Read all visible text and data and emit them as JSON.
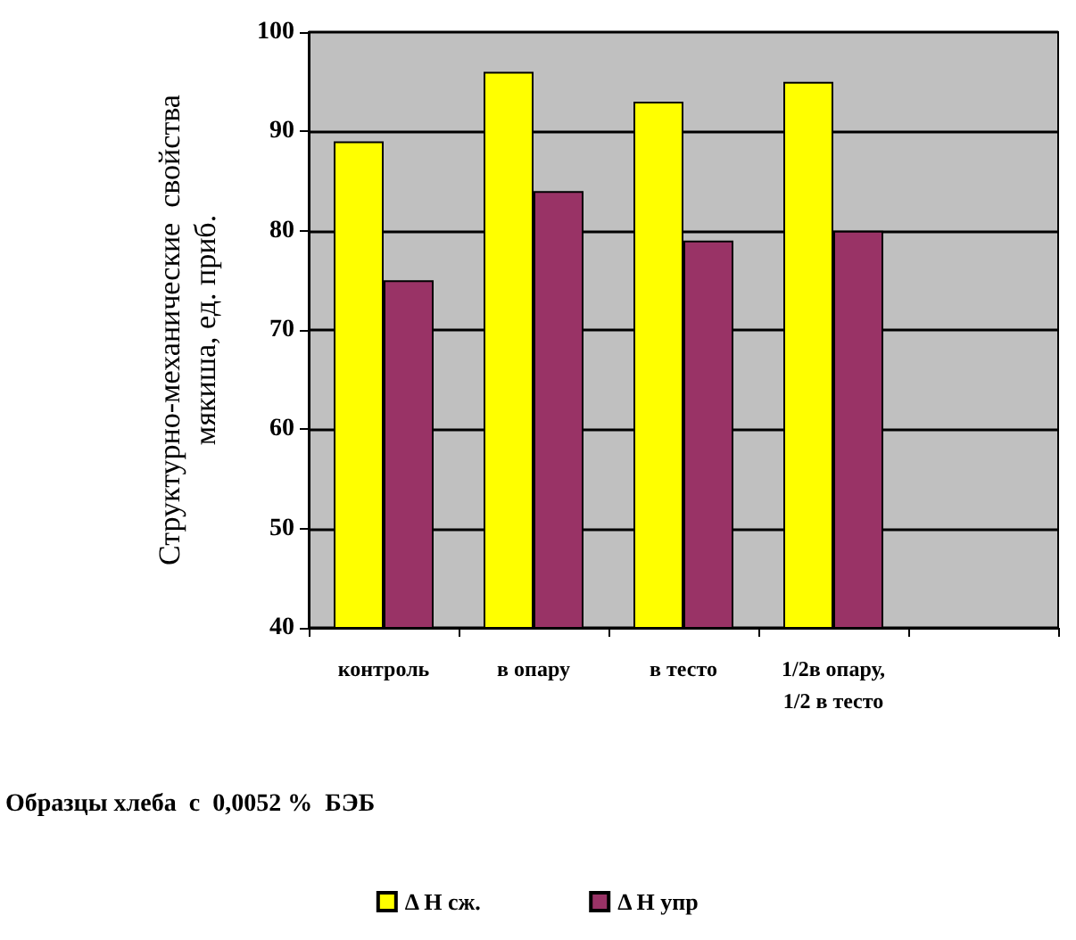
{
  "chart_data": {
    "type": "bar",
    "xlabel": "Образцы хлеба  с  0,0052 %  БЭБ",
    "ylabel": "Структурно-механические  свойства\nмякиша, ед. приб.",
    "categories": [
      "контроль",
      "в опару",
      "в тесто",
      "1/2в опару,\n1/2 в тесто",
      null
    ],
    "series": [
      {
        "name": "Δ Н сж.",
        "color": "#ffff00",
        "values": [
          89,
          96,
          93,
          95,
          null
        ]
      },
      {
        "name": "Δ Н упр",
        "color": "#993366",
        "values": [
          75,
          84,
          79,
          80,
          null
        ]
      }
    ],
    "ylim": [
      40,
      100
    ],
    "yticks": [
      40,
      50,
      60,
      70,
      80,
      90,
      100
    ],
    "grid": "y",
    "legend": "bottom"
  }
}
